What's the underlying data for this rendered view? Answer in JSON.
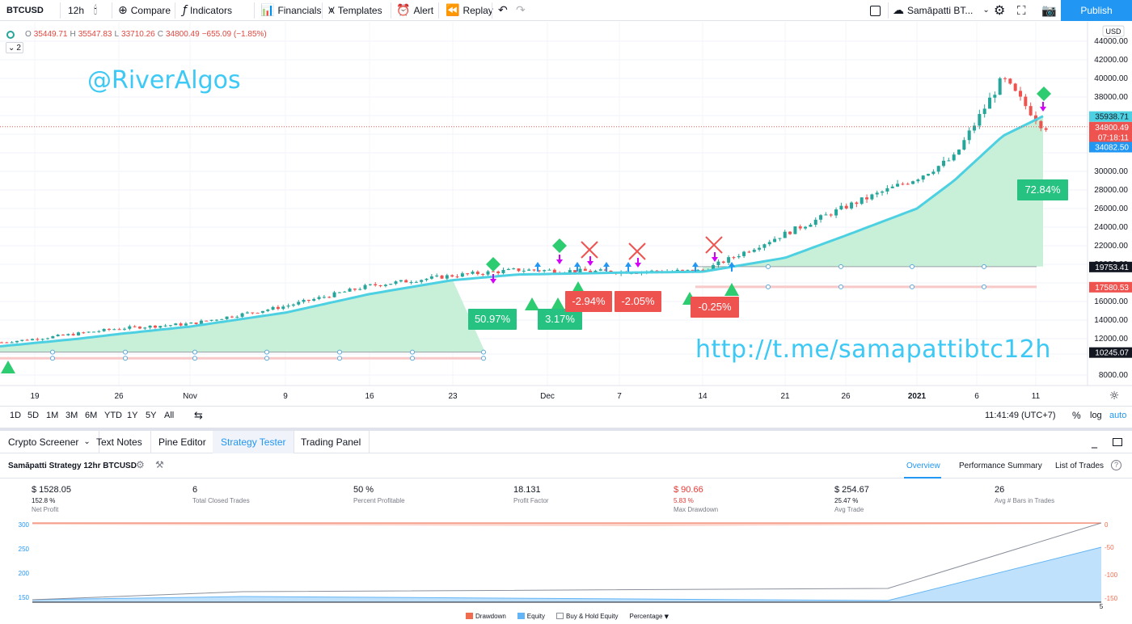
{
  "toolbar": {
    "symbol": "BTCUSD",
    "interval": "12h",
    "compare": "Compare",
    "indicators": "Indicators",
    "financials": "Financials",
    "templates": "Templates",
    "alert": "Alert",
    "replay": "Replay",
    "layout_name": "Samāpatti BT...",
    "publish": "Publish"
  },
  "legend": {
    "o_label": "O",
    "o": "35449.71",
    "h_label": "H",
    "h": "35547.83",
    "l_label": "L",
    "l": "33710.26",
    "c_label": "C",
    "c": "34800.49",
    "change": "−655.09 (−1.85%)",
    "collapse_count": "2"
  },
  "watermarks": {
    "handle": "@RiverAlgos",
    "url": "http://t.me/samapattibtc12h"
  },
  "price_axis": {
    "currency": "USD",
    "ticks": [
      44000,
      42000,
      40000,
      38000,
      36000,
      34000,
      32000,
      30000,
      28000,
      26000,
      24000,
      22000,
      20000,
      18000,
      16000,
      14000,
      12000,
      10000,
      8000
    ],
    "tick_labels": [
      "44000.00",
      "42000.00",
      "40000.00",
      "38000.00",
      "",
      "",
      "",
      "30000.00",
      "28000.00",
      "26000.00",
      "24000.00",
      "22000.00",
      "20000.00",
      "",
      "16000.00",
      "14000.00",
      "12000.00",
      "",
      "8000.00"
    ],
    "tags": [
      {
        "label": "35938.71",
        "value": 35938.71,
        "color": "#4dd0e1",
        "text_color": "#131722"
      },
      {
        "label": "34800.49",
        "value": 34800.49,
        "color": "#ef5350",
        "text_color": "#ffffff"
      },
      {
        "label": "07:18:11",
        "value": 33700,
        "color": "#ef5350",
        "text_color": "#ffffff"
      },
      {
        "label": "34082.50",
        "value": 32650,
        "color": "#2196f3",
        "text_color": "#ffffff"
      },
      {
        "label": "19753.41",
        "value": 19753.41,
        "color": "#131722",
        "text_color": "#ffffff"
      },
      {
        "label": "17580.53",
        "value": 17580.53,
        "color": "#ef5350",
        "text_color": "#ffffff"
      },
      {
        "label": "10245.07",
        "value": 10245.07,
        "color": "#131722",
        "text_color": "#ffffff"
      }
    ]
  },
  "time_axis": {
    "labels": [
      "19",
      "26",
      "Nov",
      "9",
      "16",
      "23",
      "Dec",
      "7",
      "14",
      "21",
      "26",
      "2021",
      "6",
      "11"
    ]
  },
  "chart_data": {
    "type": "candlestick",
    "title": "",
    "ylim": [
      8000,
      44000
    ],
    "series": [
      {
        "name": "BTCUSD",
        "x": [
          "Oct 19",
          "Oct 26",
          "Nov 2",
          "Nov 9",
          "Nov 16",
          "Nov 23",
          "Nov 30",
          "Dec 7",
          "Dec 14",
          "Dec 21",
          "Dec 28",
          "Jan 1",
          "Jan 4",
          "Jan 8",
          "Jan 12"
        ],
        "values": [
          11500,
          13100,
          13600,
          15500,
          17700,
          18800,
          19400,
          19200,
          19300,
          23300,
          26200,
          29300,
          31500,
          40000,
          34800
        ]
      },
      {
        "name": "trailing",
        "x": [
          "Oct 19",
          "Oct 26",
          "Nov 2",
          "Nov 9",
          "Nov 16",
          "Nov 23",
          "Nov 30",
          "Dec 7",
          "Dec 14",
          "Dec 21",
          "Dec 28",
          "Jan 1",
          "Jan 4",
          "Jan 8",
          "Jan 12"
        ],
        "values": [
          11000,
          12500,
          13300,
          14800,
          16800,
          18300,
          18900,
          19100,
          19200,
          20700,
          23100,
          26000,
          29000,
          33800,
          35938.71
        ]
      }
    ],
    "trade_labels": [
      {
        "label": "50.97%",
        "color": "#26c281"
      },
      {
        "label": "3.17%",
        "color": "#26c281"
      },
      {
        "label": "-2.94%",
        "color": "#ef5350"
      },
      {
        "label": "-2.05%",
        "color": "#ef5350"
      },
      {
        "label": "-0.25%",
        "color": "#ef5350"
      },
      {
        "label": "72.84%",
        "color": "#26c281"
      }
    ]
  },
  "timeframes": [
    "1D",
    "5D",
    "1M",
    "3M",
    "6M",
    "YTD",
    "1Y",
    "5Y",
    "All"
  ],
  "clock": "11:41:49 (UTC+7)",
  "scale": {
    "percent": "%",
    "log": "log",
    "auto": "auto"
  },
  "panel_tabs": [
    "Crypto Screener",
    "Text Notes",
    "Pine Editor",
    "Strategy Tester",
    "Trading Panel"
  ],
  "strategy": {
    "title": "Samāpatti Strategy 12hr BTCUSD",
    "tabs": [
      "Overview",
      "Performance Summary",
      "List of Trades"
    ],
    "stats": [
      {
        "value": "$ 1528.05",
        "sub": "152.8 %",
        "label": "Net Profit",
        "negative": false
      },
      {
        "value": "6",
        "sub": "",
        "label": "Total Closed Trades",
        "negative": false
      },
      {
        "value": "50 %",
        "sub": "",
        "label": "Percent Profitable",
        "negative": false
      },
      {
        "value": "18.131",
        "sub": "",
        "label": "Profit Factor",
        "negative": false
      },
      {
        "value": "$ 90.66",
        "sub": "5.83 %",
        "label": "Max Drawdown",
        "negative": true
      },
      {
        "value": "$ 254.67",
        "sub": "25.47 %",
        "label": "Avg Trade",
        "negative": false
      },
      {
        "value": "26",
        "sub": "",
        "label": "Avg # Bars in Trades",
        "negative": false
      }
    ],
    "equity_chart": {
      "left_ticks": [
        "300",
        "250",
        "200",
        "150"
      ],
      "right_ticks": [
        "0",
        "-50",
        "-100",
        "-150"
      ],
      "x_tick": "5",
      "legend": [
        "Drawdown",
        "Equity",
        "Buy & Hold Equity",
        "Percentage"
      ],
      "colors": {
        "drawdown": "#ef6c4f",
        "equity": "#64b5f6",
        "buyhold": "#8a8f9c"
      }
    }
  }
}
